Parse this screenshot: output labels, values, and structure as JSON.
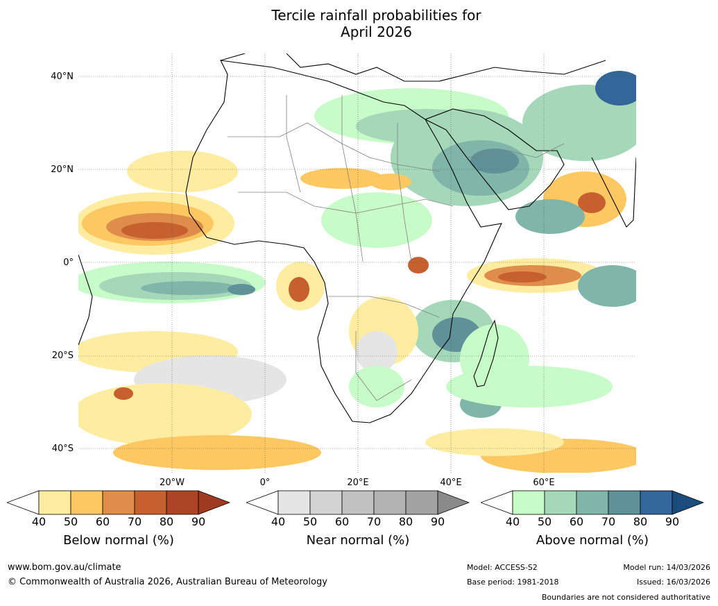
{
  "title": {
    "line1": "Tercile rainfall probabilities for",
    "line2": "April 2026"
  },
  "map": {
    "lat_labels": [
      "40°N",
      "20°N",
      "0°",
      "20°S",
      "40°S"
    ],
    "lon_labels": [
      "20°W",
      "0°",
      "20°E",
      "40°E",
      "60°E"
    ]
  },
  "colorbars": [
    {
      "label": "Below normal (%)",
      "ticks": [
        "40",
        "50",
        "60",
        "70",
        "80",
        "90"
      ],
      "colors": [
        "#ffffff",
        "#feeda0",
        "#fdc862",
        "#de8d4a",
        "#c6602f",
        "#ab4526",
        "#9d3a20"
      ]
    },
    {
      "label": "Near normal (%)",
      "ticks": [
        "40",
        "50",
        "60",
        "70",
        "80",
        "90"
      ],
      "colors": [
        "#ffffff",
        "#e5e5e5",
        "#d3d3d3",
        "#c1c1c1",
        "#b3b3b3",
        "#a3a3a3",
        "#8a8a8a"
      ]
    },
    {
      "label": "Above normal (%)",
      "ticks": [
        "40",
        "50",
        "60",
        "70",
        "80",
        "90"
      ],
      "colors": [
        "#ffffff",
        "#c7fbc7",
        "#a4d8b9",
        "#80b5aa",
        "#5f9198",
        "#336699",
        "#1b4c7e"
      ]
    }
  ],
  "footer": {
    "website": "www.bom.gov.au/climate",
    "copyright": "© Commonwealth of Australia 2026, Australian Bureau of Meteorology",
    "model": "Model: ACCESS-S2",
    "base_period": "Base period: 1981-2018",
    "model_run": "Model run: 14/03/2026",
    "issued": "Issued: 16/03/2026",
    "disclaimer": "Boundaries are not considered authoritative"
  }
}
